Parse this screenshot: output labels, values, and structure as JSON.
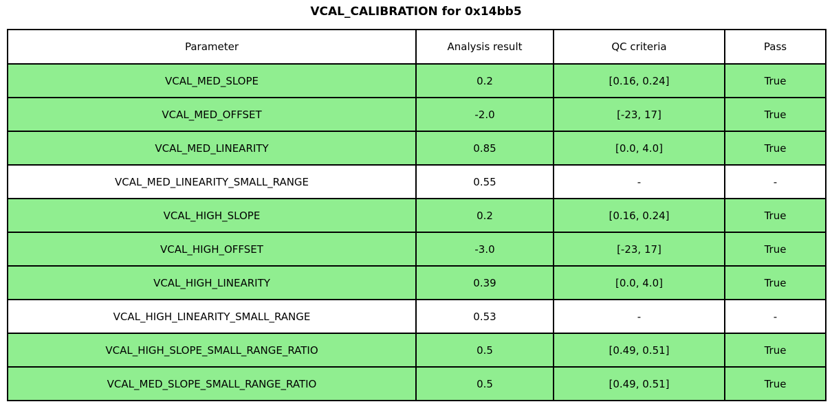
{
  "title": "VCAL_CALIBRATION for 0x14bb5",
  "colors": {
    "pass_row": "#90EE90",
    "default_row": "#FFFFFF",
    "border": "#000000",
    "text": "#000000"
  },
  "chart_data": {
    "type": "table",
    "title": "VCAL_CALIBRATION for 0x14bb5",
    "columns": [
      "Parameter",
      "Analysis result",
      "QC criteria",
      "Pass"
    ],
    "rows": [
      {
        "parameter": "VCAL_MED_SLOPE",
        "analysis_result": "0.2",
        "qc_criteria": "[0.16, 0.24]",
        "pass": "True",
        "highlighted": true
      },
      {
        "parameter": "VCAL_MED_OFFSET",
        "analysis_result": "-2.0",
        "qc_criteria": "[-23, 17]",
        "pass": "True",
        "highlighted": true
      },
      {
        "parameter": "VCAL_MED_LINEARITY",
        "analysis_result": "0.85",
        "qc_criteria": "[0.0, 4.0]",
        "pass": "True",
        "highlighted": true
      },
      {
        "parameter": "VCAL_MED_LINEARITY_SMALL_RANGE",
        "analysis_result": "0.55",
        "qc_criteria": "-",
        "pass": "-",
        "highlighted": false
      },
      {
        "parameter": "VCAL_HIGH_SLOPE",
        "analysis_result": "0.2",
        "qc_criteria": "[0.16, 0.24]",
        "pass": "True",
        "highlighted": true
      },
      {
        "parameter": "VCAL_HIGH_OFFSET",
        "analysis_result": "-3.0",
        "qc_criteria": "[-23, 17]",
        "pass": "True",
        "highlighted": true
      },
      {
        "parameter": "VCAL_HIGH_LINEARITY",
        "analysis_result": "0.39",
        "qc_criteria": "[0.0, 4.0]",
        "pass": "True",
        "highlighted": true
      },
      {
        "parameter": "VCAL_HIGH_LINEARITY_SMALL_RANGE",
        "analysis_result": "0.53",
        "qc_criteria": "-",
        "pass": "-",
        "highlighted": false
      },
      {
        "parameter": "VCAL_HIGH_SLOPE_SMALL_RANGE_RATIO",
        "analysis_result": "0.5",
        "qc_criteria": "[0.49, 0.51]",
        "pass": "True",
        "highlighted": true
      },
      {
        "parameter": "VCAL_MED_SLOPE_SMALL_RANGE_RATIO",
        "analysis_result": "0.5",
        "qc_criteria": "[0.49, 0.51]",
        "pass": "True",
        "highlighted": true
      }
    ]
  }
}
